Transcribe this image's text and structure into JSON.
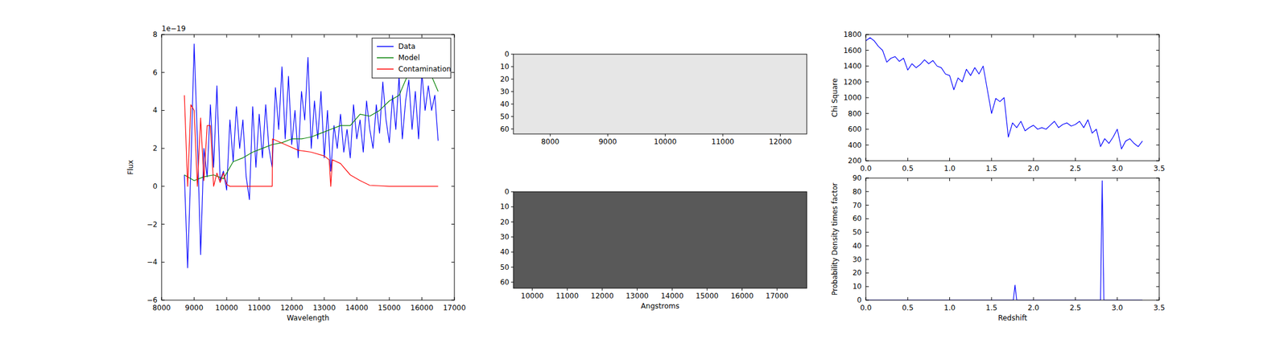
{
  "chart_data": [
    {
      "type": "line",
      "xlabel": "Wavelength",
      "ylabel": "Flux",
      "annotation": "1e−19",
      "legend": "upper right",
      "xlim": [
        8000,
        17000
      ],
      "ylim": [
        -6,
        8
      ],
      "xticks": [
        8000,
        9000,
        10000,
        11000,
        12000,
        13000,
        14000,
        15000,
        16000,
        17000
      ],
      "yticks": [
        -6,
        -4,
        -2,
        0,
        2,
        4,
        6,
        8
      ],
      "series": [
        {
          "name": "Data",
          "color": "#0000ff",
          "x": [
            8700,
            8800,
            8900,
            9000,
            9100,
            9200,
            9300,
            9400,
            9500,
            9600,
            9700,
            9800,
            9900,
            10000,
            10100,
            10200,
            10300,
            10400,
            10500,
            10600,
            10700,
            10800,
            10900,
            11000,
            11100,
            11200,
            11300,
            11400,
            11500,
            11600,
            11700,
            11800,
            11900,
            12000,
            12100,
            12200,
            12300,
            12400,
            12500,
            12600,
            12700,
            12800,
            12900,
            13000,
            13100,
            13200,
            13300,
            13400,
            13500,
            13600,
            13700,
            13800,
            13900,
            14000,
            14100,
            14200,
            14300,
            14400,
            14500,
            14600,
            14700,
            14800,
            14900,
            15000,
            15100,
            15200,
            15300,
            15400,
            15500,
            15600,
            15700,
            15800,
            15900,
            16000,
            16100,
            16200,
            16300,
            16400,
            16500
          ],
          "values": [
            0.6,
            -4.3,
            1.0,
            7.5,
            2.5,
            -3.6,
            2.0,
            0.5,
            4.3,
            1.0,
            5.3,
            0.3,
            0.8,
            -0.2,
            3.5,
            1.3,
            4.2,
            2.0,
            3.5,
            0.5,
            -0.7,
            4.2,
            1.0,
            3.8,
            1.5,
            4.3,
            2.0,
            1.0,
            5.2,
            3.0,
            6.3,
            2.5,
            5.8,
            2.2,
            4.0,
            1.5,
            5.0,
            3.5,
            6.8,
            2.0,
            4.5,
            2.5,
            5.0,
            1.5,
            4.0,
            0.8,
            3.2,
            2.0,
            3.8,
            1.8,
            3.0,
            1.5,
            4.3,
            2.5,
            3.5,
            1.8,
            4.5,
            3.0,
            2.0,
            4.3,
            2.8,
            5.5,
            3.5,
            2.3,
            4.8,
            3.0,
            5.8,
            2.5,
            4.5,
            5.6,
            3.0,
            5.0,
            2.5,
            6.0,
            4.0,
            5.3,
            4.0,
            4.8,
            2.4
          ]
        },
        {
          "name": "Model",
          "color": "#008000",
          "x": [
            8700,
            9000,
            9300,
            9600,
            9900,
            10200,
            10500,
            10800,
            11100,
            11400,
            11700,
            12000,
            12300,
            12600,
            12900,
            13200,
            13500,
            13800,
            14100,
            14400,
            14700,
            15000,
            15300,
            15600,
            15900,
            16200,
            16500
          ],
          "values": [
            0.6,
            0.3,
            0.5,
            0.6,
            0.4,
            1.3,
            1.5,
            1.8,
            2.0,
            2.2,
            2.3,
            2.5,
            2.5,
            2.6,
            2.8,
            3.0,
            3.2,
            3.2,
            3.8,
            3.7,
            4.0,
            4.5,
            4.8,
            6.0,
            6.0,
            6.2,
            5.0
          ]
        },
        {
          "name": "Contamination",
          "color": "#ff0000",
          "x": [
            8700,
            8800,
            8900,
            9000,
            9100,
            9200,
            9300,
            9400,
            9500,
            9600,
            9700,
            9800,
            9900,
            10000,
            10100,
            10500,
            11000,
            11400,
            11410,
            11800,
            12200,
            12600,
            13000,
            13150,
            13200,
            13250,
            13500,
            13800,
            14100,
            14400,
            15000,
            16500
          ],
          "values": [
            4.8,
            0.0,
            4.3,
            4.0,
            0.0,
            3.6,
            0.3,
            3.2,
            3.2,
            0.0,
            0.7,
            0.2,
            0.7,
            0.1,
            0.0,
            0.0,
            0.0,
            0.0,
            2.5,
            2.2,
            1.9,
            1.8,
            1.6,
            1.4,
            0.0,
            1.4,
            1.2,
            0.6,
            0.3,
            0.05,
            0.0,
            0.0
          ]
        }
      ]
    },
    {
      "type": "image",
      "color": "#e6e6e6",
      "xlim": [
        7360,
        12460
      ],
      "ylim": [
        0,
        64
      ],
      "xticks": [
        8000,
        9000,
        10000,
        11000,
        12000
      ],
      "yticks": [
        0,
        10,
        20,
        30,
        40,
        50,
        60
      ]
    },
    {
      "type": "image",
      "color": "#595959",
      "xlabel": "Angstroms",
      "xlim": [
        9460,
        17850
      ],
      "ylim": [
        0,
        64
      ],
      "xticks": [
        10000,
        11000,
        12000,
        13000,
        14000,
        15000,
        16000,
        17000
      ],
      "yticks": [
        0,
        10,
        20,
        30,
        40,
        50,
        60
      ]
    },
    {
      "type": "line",
      "ylabel": "Chi Square",
      "xlim": [
        0,
        3.5
      ],
      "ylim": [
        200,
        1800
      ],
      "xticks": [
        {
          "value": 0,
          "label": "0.0"
        },
        0.5,
        {
          "value": 1,
          "label": "1.0"
        },
        1.5,
        {
          "value": 2,
          "label": "2.0"
        },
        2.5,
        {
          "value": 3,
          "label": "3.0"
        },
        3.5
      ],
      "yticks": [
        200,
        400,
        600,
        800,
        1000,
        1200,
        1400,
        1600,
        1800
      ],
      "series": [
        {
          "color": "#0000ff",
          "x": [
            0,
            0.05,
            0.1,
            0.15,
            0.2,
            0.25,
            0.3,
            0.35,
            0.4,
            0.45,
            0.5,
            0.55,
            0.6,
            0.65,
            0.7,
            0.75,
            0.8,
            0.85,
            0.9,
            0.95,
            1.0,
            1.05,
            1.1,
            1.15,
            1.2,
            1.25,
            1.3,
            1.35,
            1.4,
            1.45,
            1.5,
            1.55,
            1.6,
            1.65,
            1.7,
            1.75,
            1.8,
            1.85,
            1.9,
            1.95,
            2.0,
            2.05,
            2.1,
            2.15,
            2.2,
            2.25,
            2.3,
            2.35,
            2.4,
            2.45,
            2.5,
            2.55,
            2.6,
            2.65,
            2.7,
            2.75,
            2.8,
            2.85,
            2.9,
            2.95,
            3.0,
            3.05,
            3.1,
            3.15,
            3.2,
            3.25,
            3.3
          ],
          "values": [
            1720,
            1760,
            1720,
            1650,
            1600,
            1450,
            1500,
            1520,
            1460,
            1500,
            1350,
            1430,
            1380,
            1420,
            1480,
            1430,
            1470,
            1400,
            1380,
            1300,
            1280,
            1100,
            1250,
            1200,
            1360,
            1280,
            1380,
            1300,
            1400,
            1100,
            800,
            990,
            950,
            1000,
            500,
            680,
            620,
            700,
            580,
            620,
            650,
            600,
            620,
            600,
            650,
            700,
            620,
            660,
            680,
            640,
            660,
            700,
            620,
            720,
            550,
            600,
            380,
            480,
            420,
            500,
            600,
            350,
            450,
            480,
            420,
            380,
            450
          ]
        }
      ]
    },
    {
      "type": "line",
      "xlabel": "Redshift",
      "ylabel": "Probability Density times factor",
      "xlim": [
        0,
        3.5
      ],
      "ylim": [
        0,
        90
      ],
      "xticks": [
        {
          "value": 0,
          "label": "0.0"
        },
        0.5,
        {
          "value": 1,
          "label": "1.0"
        },
        1.5,
        {
          "value": 2,
          "label": "2.0"
        },
        2.5,
        {
          "value": 3,
          "label": "3.0"
        },
        3.5
      ],
      "yticks": [
        0,
        10,
        20,
        30,
        40,
        50,
        60,
        70,
        80,
        90
      ],
      "series": [
        {
          "color": "#0000ff",
          "x": [
            0,
            1.5,
            1.76,
            1.78,
            1.8,
            2.5,
            2.8,
            2.82,
            2.84,
            3.3
          ],
          "values": [
            0,
            0,
            0,
            11,
            0,
            0,
            0,
            88,
            0,
            0
          ]
        }
      ]
    }
  ]
}
